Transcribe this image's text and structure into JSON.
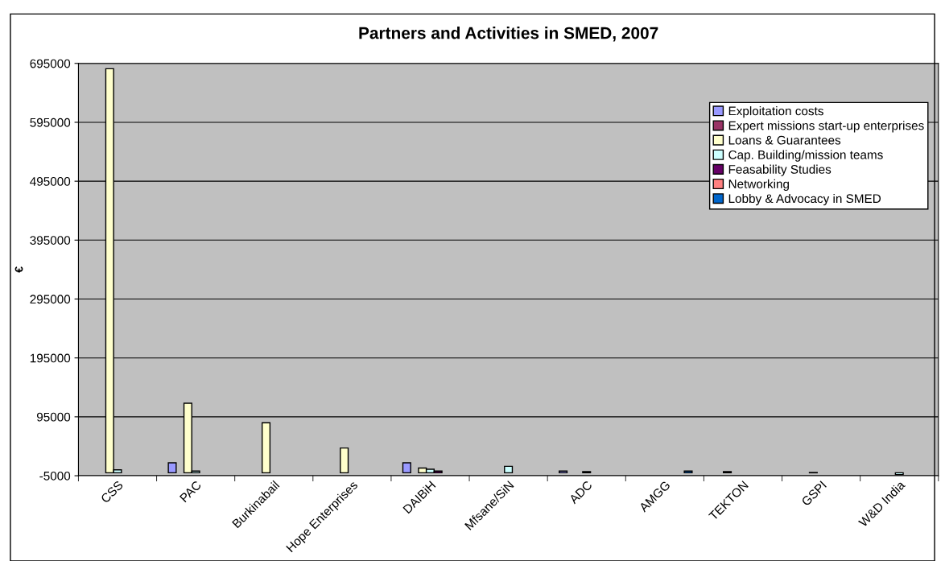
{
  "chart_data": {
    "type": "bar",
    "title": "Partners and Activities in SMED, 2007",
    "ylabel": "€",
    "categories": [
      "CSS",
      "PAC",
      "Burkinabail",
      "Hope Enterprises",
      "DAIBiH",
      "Mfsane/SiN",
      "ADC",
      "AMGG",
      "TEKTON",
      "GSPI",
      "W&D India"
    ],
    "series": [
      {
        "name": "Exploitation costs",
        "color": "#9999ff",
        "values": [
          null,
          17000,
          null,
          null,
          17000,
          null,
          3000,
          null,
          null,
          null,
          null
        ]
      },
      {
        "name": "Expert missions start-up enterprises",
        "color": "#993366",
        "values": [
          null,
          null,
          null,
          null,
          null,
          null,
          null,
          null,
          2000,
          null,
          null
        ]
      },
      {
        "name": "Loans & Guarantees",
        "color": "#ffffcc",
        "values": [
          686000,
          118000,
          85000,
          42000,
          8000,
          null,
          null,
          null,
          null,
          500,
          null
        ]
      },
      {
        "name": "Cap. Building/mission teams",
        "color": "#ccffff",
        "values": [
          5000,
          3000,
          null,
          null,
          6000,
          11000,
          2000,
          null,
          null,
          null,
          -3000
        ]
      },
      {
        "name": "Feasability Studies",
        "color": "#660066",
        "values": [
          null,
          null,
          null,
          null,
          3000,
          null,
          null,
          null,
          null,
          null,
          null
        ]
      },
      {
        "name": "Networking",
        "color": "#ff8080",
        "values": [
          null,
          null,
          null,
          null,
          null,
          null,
          null,
          null,
          null,
          null,
          null
        ]
      },
      {
        "name": "Lobby & Advocacy in SMED",
        "color": "#0066cc",
        "values": [
          null,
          null,
          null,
          null,
          null,
          null,
          null,
          3000,
          null,
          null,
          null
        ]
      }
    ],
    "ylim": [
      -5000,
      695000
    ],
    "yticks": [
      -5000,
      95000,
      195000,
      295000,
      395000,
      495000,
      595000,
      695000
    ],
    "grid": "y",
    "legend": "top right"
  }
}
